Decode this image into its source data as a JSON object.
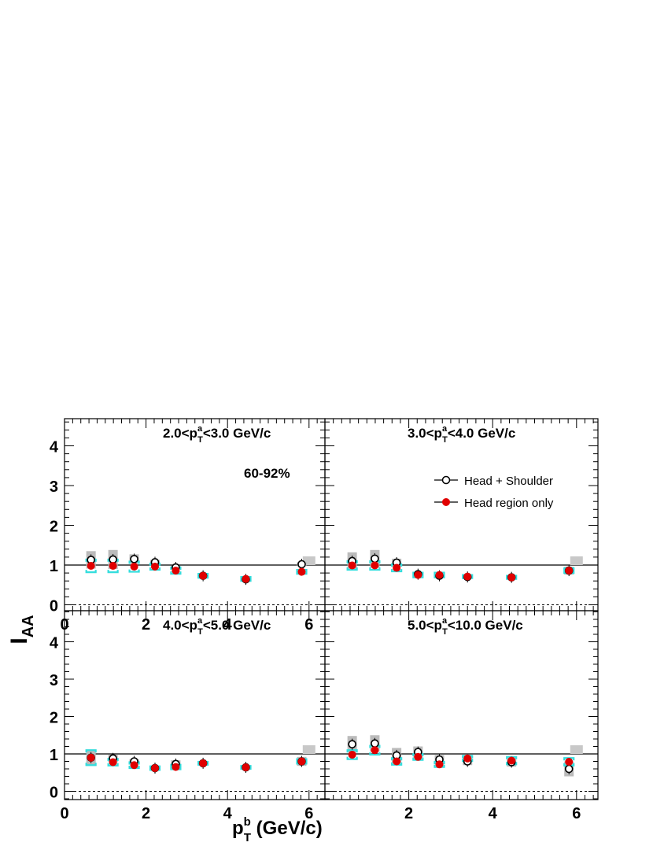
{
  "figure": {
    "centrality_label": "60-92%",
    "ylabel": {
      "main": "I",
      "sub": "AA"
    },
    "xlabel": {
      "main": "p",
      "sup": "b",
      "sub": "T",
      "tail": " (GeV/c)"
    },
    "legend": [
      {
        "label": "Head + Shoulder",
        "marker": "open-circle"
      },
      {
        "label": "Head region only",
        "marker": "filled-circle"
      }
    ],
    "colors": {
      "head_shoulder": "#000000",
      "head_only": "#e00000",
      "sys_band_head_shoulder": "#bbbbbb",
      "sys_bracket_head_only": "#33dddd",
      "norm_box": "#c8c8c8"
    }
  },
  "chart_data": [
    {
      "type": "scatter",
      "panel": "top-left",
      "title": {
        "pre": "2.0<p",
        "sup": "a",
        "sub": "T",
        "post": "<3.0 GeV/c"
      },
      "xlim": [
        0,
        6.6
      ],
      "ylim": [
        -0.2,
        4.8
      ],
      "xticks": [
        "0",
        "2",
        "4",
        "6"
      ],
      "yticks": [
        "0",
        "1",
        "2",
        "3",
        "4"
      ],
      "reference_lines": [
        1,
        0
      ],
      "series": [
        {
          "name": "Head + Shoulder",
          "x": [
            0.65,
            1.19,
            1.71,
            2.22,
            2.73,
            3.4,
            4.45,
            5.82
          ],
          "y": [
            1.13,
            1.14,
            1.15,
            1.07,
            0.94,
            0.73,
            0.64,
            1.02
          ],
          "sys": [
            0.22,
            0.24,
            0.12,
            0.06,
            0.05,
            0.03,
            0.03,
            0.05
          ]
        },
        {
          "name": "Head region only",
          "x": [
            0.65,
            1.19,
            1.71,
            2.22,
            2.73,
            3.4,
            4.45,
            5.82
          ],
          "y": [
            0.98,
            0.98,
            0.96,
            0.96,
            0.86,
            0.73,
            0.65,
            0.83
          ],
          "sys": [
            0.16,
            0.16,
            0.13,
            0.08,
            0.08,
            0.05,
            0.05,
            0.05
          ]
        }
      ]
    },
    {
      "type": "scatter",
      "panel": "top-right",
      "title": {
        "pre": "3.0<p",
        "sup": "a",
        "sub": "T",
        "post": "<4.0 GeV/c"
      },
      "xlim": [
        0,
        6.6
      ],
      "ylim": [
        -0.2,
        4.8
      ],
      "xticks": [],
      "yticks": [],
      "reference_lines": [
        1,
        0
      ],
      "series": [
        {
          "name": "Head + Shoulder",
          "x": [
            0.65,
            1.19,
            1.71,
            2.22,
            2.73,
            3.4,
            4.45,
            5.82
          ],
          "y": [
            1.1,
            1.16,
            1.06,
            0.77,
            0.73,
            0.7,
            0.69,
            0.86
          ],
          "sys": [
            0.22,
            0.22,
            0.1,
            0.05,
            0.05,
            0.04,
            0.04,
            0.1
          ]
        },
        {
          "name": "Head region only",
          "x": [
            0.65,
            1.19,
            1.71,
            2.22,
            2.73,
            3.4,
            4.45,
            5.82
          ],
          "y": [
            0.99,
            0.99,
            0.93,
            0.75,
            0.75,
            0.71,
            0.69,
            0.86
          ],
          "sys": [
            0.11,
            0.11,
            0.09,
            0.06,
            0.06,
            0.04,
            0.04,
            0.06
          ]
        }
      ]
    },
    {
      "type": "scatter",
      "panel": "bottom-left",
      "title": {
        "pre": "4.0<p",
        "sup": "a",
        "sub": "T",
        "post": "<5.0 GeV/c"
      },
      "xlim": [
        0,
        6.6
      ],
      "ylim": [
        -0.2,
        4.8
      ],
      "xticks": [
        "0",
        "2",
        "4",
        "6"
      ],
      "yticks": [
        "0",
        "1",
        "2",
        "3",
        "4"
      ],
      "reference_lines": [
        1,
        0
      ],
      "series": [
        {
          "name": "Head + Shoulder",
          "x": [
            0.65,
            1.19,
            1.71,
            2.22,
            2.73,
            3.4,
            4.45,
            5.82
          ],
          "y": [
            0.9,
            0.88,
            0.8,
            0.62,
            0.73,
            0.75,
            0.64,
            0.8
          ],
          "sys": [
            0.22,
            0.1,
            0.06,
            0.04,
            0.1,
            0.04,
            0.04,
            0.12
          ]
        },
        {
          "name": "Head region only",
          "x": [
            0.65,
            1.19,
            1.71,
            2.22,
            2.73,
            3.4,
            4.45,
            5.82
          ],
          "y": [
            0.9,
            0.78,
            0.7,
            0.62,
            0.65,
            0.75,
            0.64,
            0.8
          ],
          "sys": [
            0.2,
            0.09,
            0.08,
            0.05,
            0.06,
            0.04,
            0.04,
            0.06
          ]
        }
      ]
    },
    {
      "type": "scatter",
      "panel": "bottom-right",
      "title": {
        "pre": "5.0<p",
        "sup": "a",
        "sub": "T",
        "post": "<10.0 GeV/c"
      },
      "xlim": [
        0,
        6.6
      ],
      "ylim": [
        -0.2,
        4.8
      ],
      "xticks": [
        "2",
        "4",
        "6"
      ],
      "yticks": [],
      "reference_lines": [
        1,
        0
      ],
      "series": [
        {
          "name": "Head + Shoulder",
          "x": [
            0.65,
            1.19,
            1.71,
            2.22,
            2.73,
            3.4,
            4.45,
            5.82
          ],
          "y": [
            1.26,
            1.28,
            0.96,
            1.05,
            0.85,
            0.8,
            0.78,
            0.6
          ],
          "sys": [
            0.22,
            0.22,
            0.2,
            0.15,
            0.12,
            0.1,
            0.12,
            0.2
          ]
        },
        {
          "name": "Head region only",
          "x": [
            0.65,
            1.19,
            1.71,
            2.22,
            2.73,
            3.4,
            4.45,
            5.82
          ],
          "y": [
            0.98,
            1.1,
            0.8,
            0.92,
            0.72,
            0.88,
            0.82,
            0.79
          ],
          "sys": [
            0.12,
            0.12,
            0.09,
            0.08,
            0.07,
            0.07,
            0.1,
            0.1
          ]
        }
      ]
    }
  ]
}
